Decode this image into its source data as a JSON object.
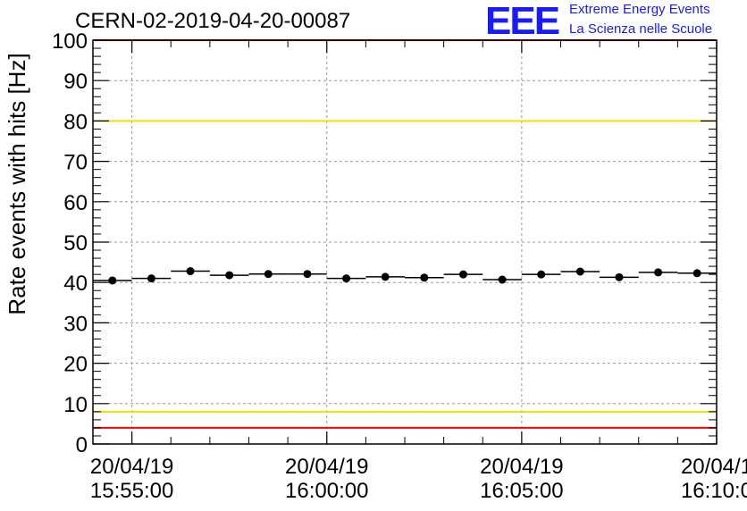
{
  "header": {
    "run_title": "CERN-02-2019-04-20-00087",
    "logo_text": "EEE",
    "logo_line1": "Extreme Energy Events",
    "logo_line2": "La Scienza nelle Scuole"
  },
  "colors": {
    "upper_limit": "#ff0000",
    "warning_band": "#ffd700",
    "markers": "#000000",
    "grid": "#999999",
    "brand": "#1a1aff"
  },
  "chart_data": {
    "type": "scatter",
    "title": "CERN-02-2019-04-20-00087",
    "ylabel": "Rate events with hits [Hz]",
    "xlabel": "",
    "ylim": [
      0,
      100
    ],
    "y_ticks": [
      0,
      10,
      20,
      30,
      40,
      50,
      60,
      70,
      80,
      90,
      100
    ],
    "x_ticks": [
      {
        "minutes": 0,
        "date": "20/04/19",
        "time": "15:55:00"
      },
      {
        "minutes": 5,
        "date": "20/04/19",
        "time": "16:00:00"
      },
      {
        "minutes": 10,
        "date": "20/04/19",
        "time": "16:05:00"
      },
      {
        "minutes": 15,
        "date": "20/04/1",
        "time": "16:10:0"
      }
    ],
    "xlim_minutes": [
      -1,
      15
    ],
    "bin_width_minutes": 1,
    "series": [
      {
        "name": "Rate events with hits",
        "x_minutes": [
          -0.5,
          0.5,
          1.5,
          2.5,
          3.5,
          4.5,
          5.5,
          6.5,
          7.5,
          8.5,
          9.5,
          10.5,
          11.5,
          12.5,
          13.5,
          14.5
        ],
        "values": [
          40.5,
          41.0,
          42.8,
          41.8,
          42.1,
          42.1,
          41.0,
          41.4,
          41.2,
          42.0,
          40.7,
          42.0,
          42.7,
          41.3,
          42.5,
          42.3
        ]
      }
    ],
    "reference_lines": [
      {
        "name": "upper-red-limit",
        "value": 100,
        "color": "#ff0000"
      },
      {
        "name": "upper-yellow-limit",
        "value": 80,
        "color": "#ffd700"
      },
      {
        "name": "lower-yellow-limit",
        "value": 8,
        "color": "#ffd700"
      },
      {
        "name": "lower-red-limit",
        "value": 4,
        "color": "#ff0000"
      }
    ],
    "grid": true
  }
}
